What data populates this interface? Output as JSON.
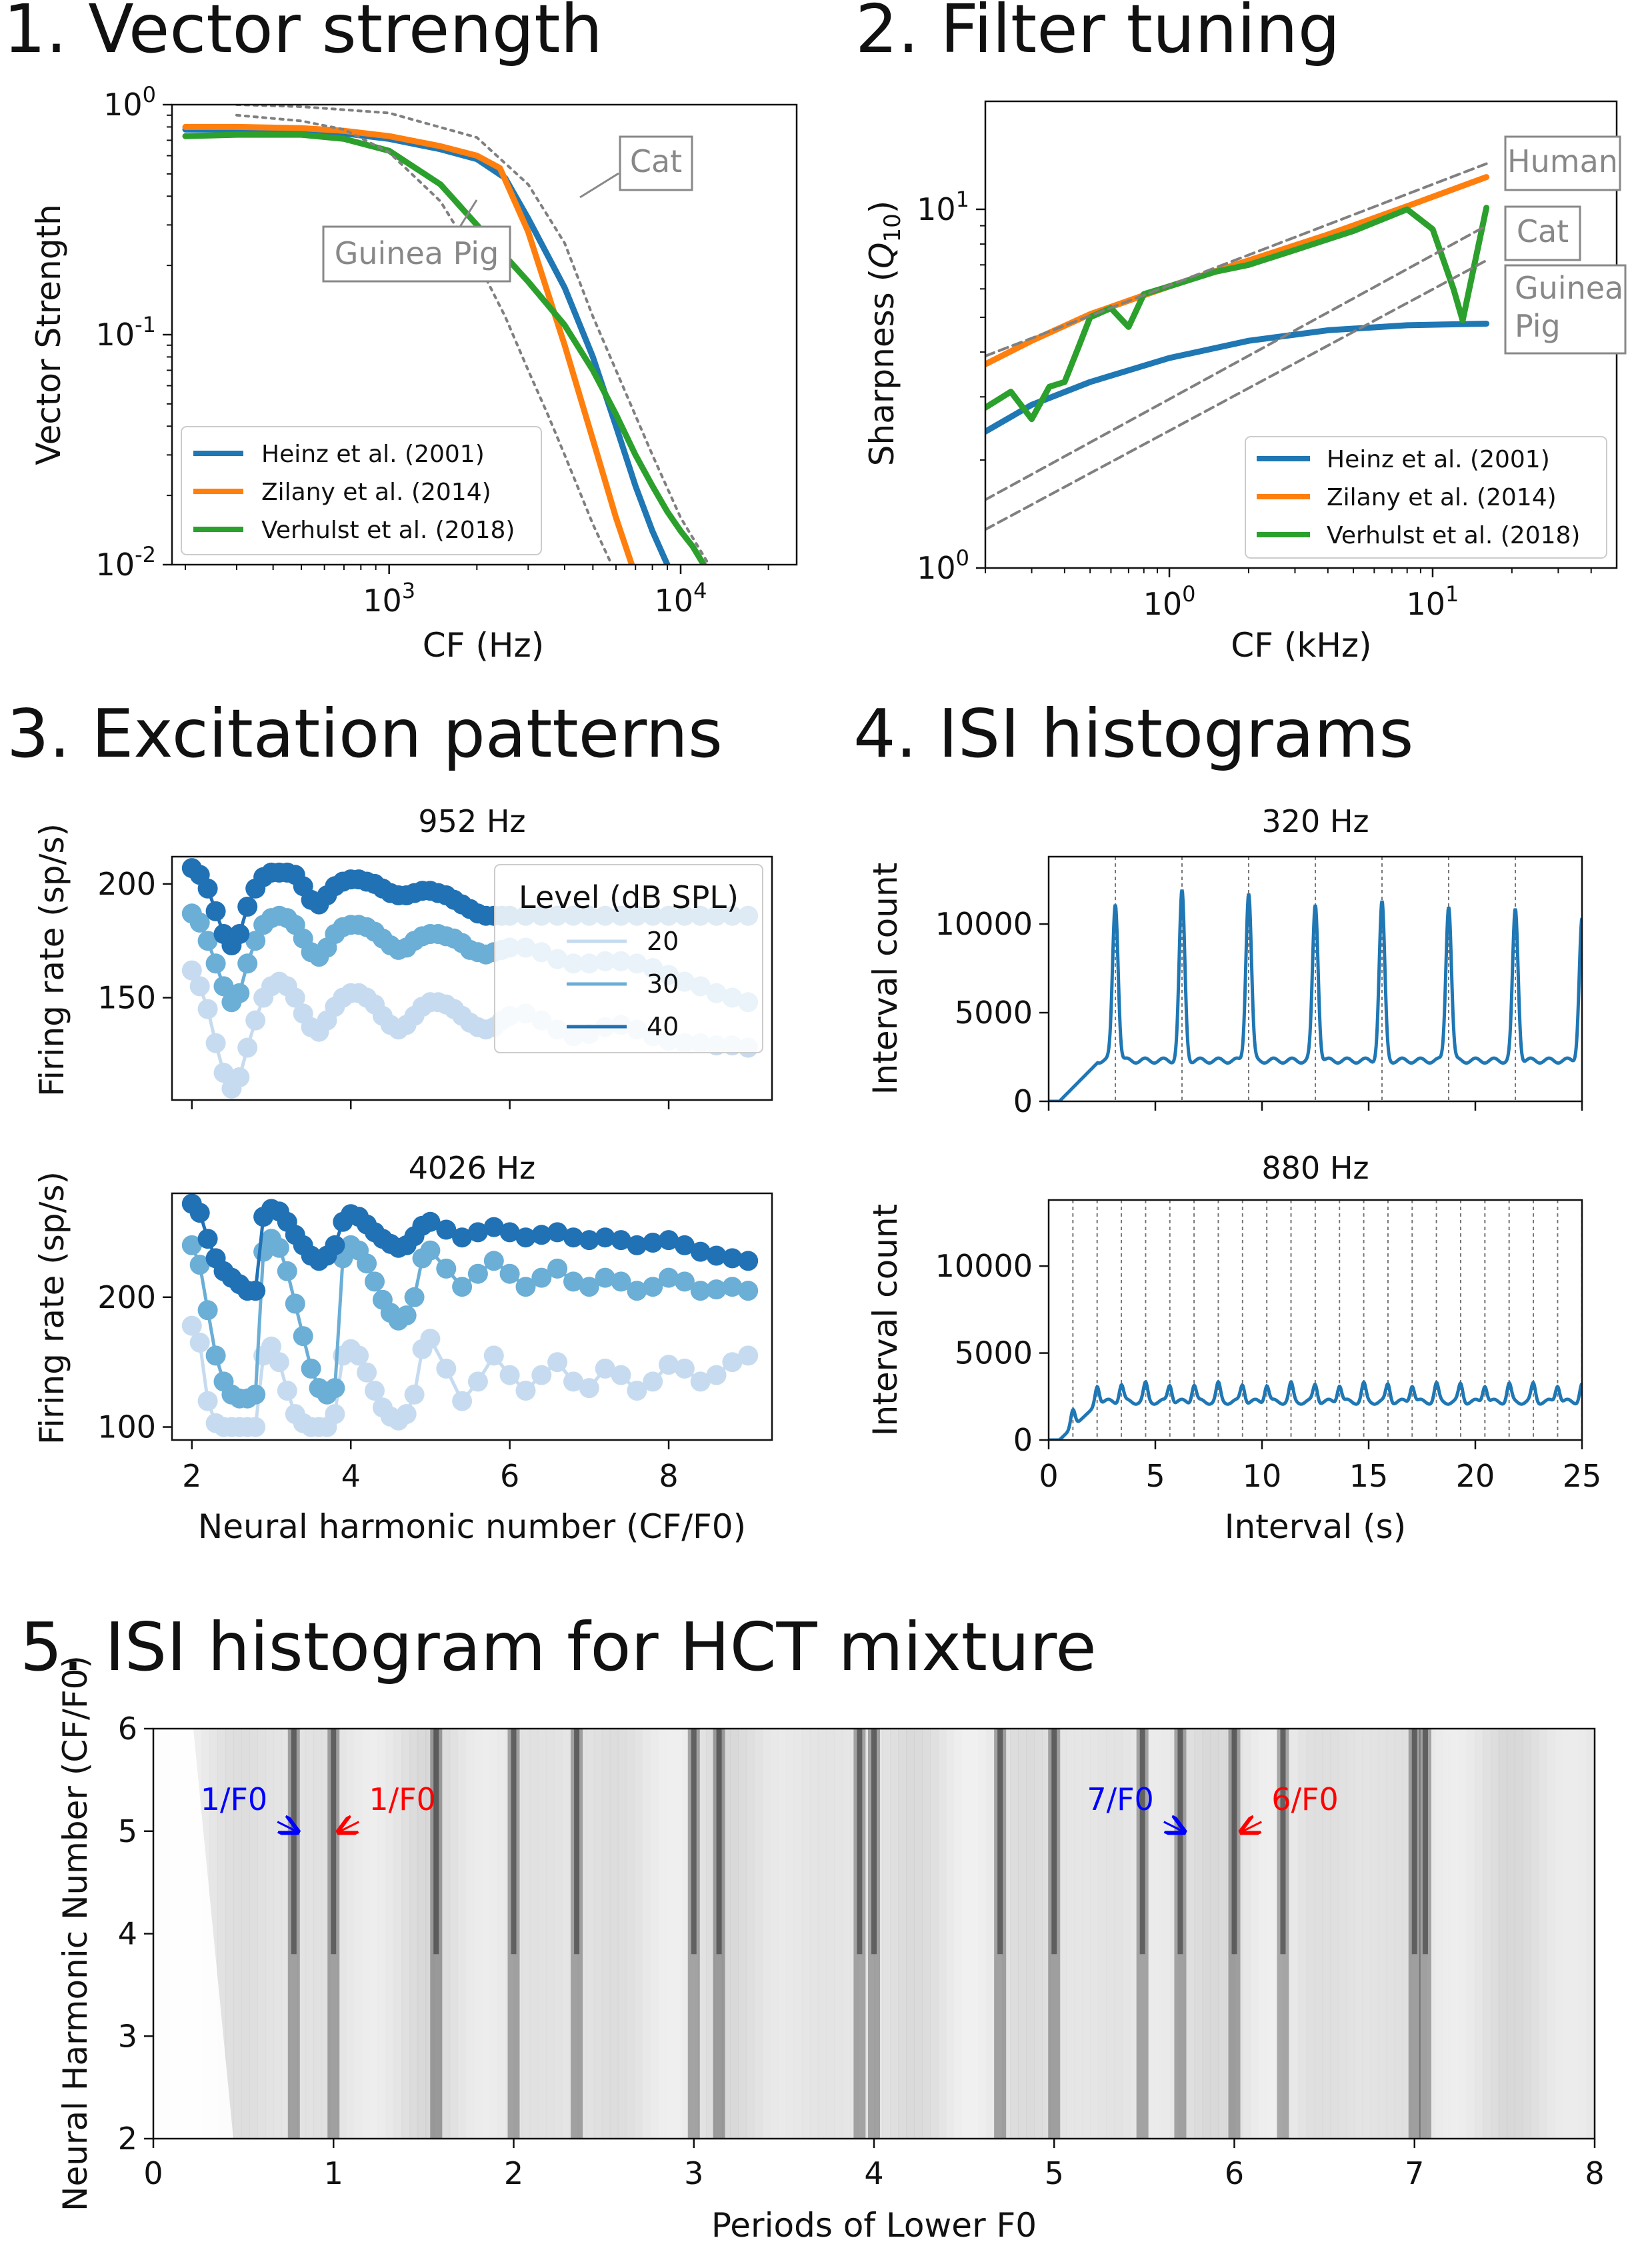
{
  "panels": {
    "p1": {
      "title": "1. Vector strength",
      "xlabel": "CF (Hz)",
      "ylabel": "Vector Strength",
      "xticks": [
        "10^3",
        "10^4"
      ],
      "yticks": [
        "10^0",
        "10^-1",
        "10^-2"
      ],
      "notes": [
        "Cat",
        "Guinea Pig"
      ]
    },
    "p2": {
      "title": "2. Filter tuning",
      "xlabel": "CF (kHz)",
      "ylabel_main": "Sharpness (",
      "ylabel_sym": "Q",
      "ylabel_sub": "10",
      "ylabel_end": ")",
      "xticks": [
        "10^0",
        "10^1"
      ],
      "yticks": [
        "10^1",
        "10^0"
      ],
      "notes": [
        "Human",
        "Cat",
        "Guinea",
        "Pig"
      ]
    },
    "p3": {
      "title": "3. Excitation patterns",
      "sub1": "952 Hz",
      "sub2": "4026 Hz",
      "ylabel": "Firing rate (sp/s)",
      "xlabel": "Neural harmonic number (CF/F0)",
      "legend_title": "Level (dB SPL)",
      "yticks_top": [
        "200",
        "150"
      ],
      "yticks_bot": [
        "200",
        "100"
      ],
      "xticks": [
        "2",
        "4",
        "6",
        "8"
      ]
    },
    "p4": {
      "title": "4. ISI histograms",
      "sub1": "320 Hz",
      "sub2": "880 Hz",
      "ylabel": "Interval count",
      "xlabel": "Interval (s)",
      "yticks": [
        "10000",
        "5000",
        "0"
      ],
      "xticks": [
        "0",
        "5",
        "10",
        "15",
        "20",
        "25"
      ]
    },
    "p5": {
      "title": "5. ISI histogram for HCT mixture",
      "ylabel": "Neural Harmonic Number (CF/F0)",
      "xlabel": "Periods of Lower F0",
      "xticks": [
        "0",
        "1",
        "2",
        "3",
        "4",
        "5",
        "6",
        "7",
        "8"
      ],
      "yticks": [
        "6",
        "5",
        "4",
        "3",
        "2"
      ],
      "annotations": [
        "1/F0",
        "1/F0",
        "7/F0",
        "6/F0"
      ]
    }
  },
  "legend_models": [
    "Heinz et al. (2001)",
    "Zilany et al. (2014)",
    "Verhulst et al. (2018)"
  ],
  "colors": {
    "blue": "#1f77b4",
    "orange": "#ff7f0e",
    "green": "#2ca02c",
    "ref": "#808080",
    "red": "#ff0000",
    "ann_blue": "#0000ff"
  },
  "chart_data": [
    {
      "type": "line",
      "title": "1. Vector strength",
      "xlabel": "CF (Hz)",
      "ylabel": "Vector Strength",
      "xscale": "log",
      "yscale": "log",
      "xlim": [
        180,
        25000
      ],
      "ylim": [
        0.01,
        1
      ],
      "series": [
        {
          "name": "Heinz et al. (2001)",
          "color": "#1f77b4",
          "x": [
            200,
            300,
            500,
            700,
            1000,
            1500,
            2000,
            2500,
            3000,
            4000,
            5000,
            6000,
            7000,
            8000,
            9000
          ],
          "y": [
            0.78,
            0.78,
            0.77,
            0.75,
            0.71,
            0.64,
            0.58,
            0.48,
            0.32,
            0.16,
            0.08,
            0.04,
            0.022,
            0.014,
            0.01
          ]
        },
        {
          "name": "Zilany et al. (2014)",
          "color": "#ff7f0e",
          "x": [
            200,
            300,
            500,
            700,
            1000,
            1500,
            2000,
            2400,
            3000,
            4000,
            5000,
            6000,
            6800
          ],
          "y": [
            0.8,
            0.8,
            0.79,
            0.77,
            0.73,
            0.66,
            0.6,
            0.53,
            0.28,
            0.09,
            0.035,
            0.016,
            0.01
          ]
        },
        {
          "name": "Verhulst et al. (2018)",
          "color": "#2ca02c",
          "x": [
            200,
            300,
            500,
            700,
            1000,
            1500,
            2000,
            3000,
            4000,
            5000,
            6000,
            7000,
            8000,
            9000,
            10000,
            11000,
            12000
          ],
          "y": [
            0.73,
            0.74,
            0.74,
            0.71,
            0.63,
            0.45,
            0.3,
            0.17,
            0.11,
            0.07,
            0.045,
            0.03,
            0.022,
            0.017,
            0.014,
            0.012,
            0.01
          ]
        },
        {
          "name": "Cat",
          "color": "#808080",
          "dashed": true,
          "x": [
            300,
            500,
            1000,
            2000,
            3000,
            4000,
            5000,
            6000,
            8000,
            10000,
            12500
          ],
          "y": [
            1.0,
            0.98,
            0.92,
            0.72,
            0.45,
            0.25,
            0.12,
            0.07,
            0.03,
            0.016,
            0.01
          ]
        },
        {
          "name": "Guinea Pig",
          "color": "#808080",
          "dashed": true,
          "x": [
            300,
            500,
            700,
            1000,
            1500,
            2000,
            2500,
            3000,
            3500,
            4000,
            5000,
            5800
          ],
          "y": [
            0.9,
            0.85,
            0.78,
            0.62,
            0.38,
            0.21,
            0.12,
            0.07,
            0.045,
            0.03,
            0.015,
            0.01
          ]
        }
      ]
    },
    {
      "type": "line",
      "title": "2. Filter tuning",
      "xlabel": "CF (kHz)",
      "ylabel": "Sharpness (Q10)",
      "xscale": "log",
      "yscale": "log",
      "xlim": [
        0.2,
        50
      ],
      "ylim": [
        1,
        20
      ],
      "series": [
        {
          "name": "Heinz et al. (2001)",
          "color": "#1f77b4",
          "x": [
            0.2,
            0.3,
            0.5,
            1,
            2,
            4,
            8,
            16
          ],
          "y": [
            2.4,
            2.85,
            3.3,
            3.85,
            4.3,
            4.6,
            4.75,
            4.8
          ]
        },
        {
          "name": "Zilany et al. (2014)",
          "color": "#ff7f0e",
          "x": [
            0.2,
            0.3,
            0.5,
            1,
            2,
            4,
            8,
            16
          ],
          "y": [
            3.7,
            4.3,
            5.1,
            6.1,
            7.2,
            8.5,
            10.2,
            12.3
          ]
        },
        {
          "name": "Verhulst et al. (2018)",
          "color": "#2ca02c",
          "x": [
            0.2,
            0.25,
            0.3,
            0.35,
            0.4,
            0.45,
            0.5,
            0.6,
            0.7,
            0.8,
            1.0,
            1.5,
            2,
            3,
            5,
            8,
            10,
            12,
            13,
            16
          ],
          "y": [
            2.8,
            3.1,
            2.6,
            3.2,
            3.3,
            4.1,
            5.0,
            5.3,
            4.7,
            5.8,
            6.1,
            6.7,
            7.0,
            7.7,
            8.7,
            10.0,
            8.8,
            6.0,
            4.9,
            10.1
          ]
        },
        {
          "name": "Human",
          "color": "#808080",
          "dashed": true,
          "x": [
            0.2,
            16
          ],
          "y": [
            3.9,
            13.4
          ]
        },
        {
          "name": "Cat",
          "color": "#808080",
          "dashed": true,
          "x": [
            0.2,
            16
          ],
          "y": [
            1.55,
            9.0
          ]
        },
        {
          "name": "Guinea Pig",
          "color": "#808080",
          "dashed": true,
          "x": [
            0.2,
            16
          ],
          "y": [
            1.28,
            7.2
          ]
        }
      ]
    },
    {
      "type": "line",
      "title": "952 Hz",
      "xlim": [
        1.75,
        9.3
      ],
      "ylim": [
        105,
        212
      ],
      "legend_title": "Level (dB SPL)",
      "x": [
        2.0,
        2.1,
        2.2,
        2.3,
        2.4,
        2.5,
        2.6,
        2.7,
        2.8,
        2.9,
        3.0,
        3.1,
        3.2,
        3.3,
        3.4,
        3.5,
        3.6,
        3.7,
        3.8,
        3.9,
        4.0,
        4.1,
        4.2,
        4.3,
        4.4,
        4.5,
        4.6,
        4.7,
        4.8,
        4.9,
        5.0,
        5.1,
        5.2,
        5.3,
        5.4,
        5.5,
        5.6,
        5.7,
        5.8,
        5.9,
        6.0,
        6.2,
        6.4,
        6.6,
        6.8,
        7.0,
        7.2,
        7.4,
        7.6,
        7.8,
        8.0,
        8.2,
        8.4,
        8.6,
        8.8,
        9.0
      ],
      "series": [
        {
          "name": "20",
          "color": "#c6dbef",
          "values": [
            162,
            155,
            145,
            130,
            117,
            110,
            115,
            128,
            140,
            150,
            155,
            157,
            155,
            150,
            143,
            137,
            135,
            140,
            146,
            150,
            152,
            152,
            150,
            147,
            142,
            138,
            136,
            138,
            142,
            146,
            148,
            148,
            147,
            145,
            142,
            139,
            137,
            136,
            137,
            140,
            142,
            143,
            140,
            136,
            133,
            134,
            137,
            138,
            136,
            133,
            131,
            130,
            130,
            129,
            129,
            128
          ]
        },
        {
          "name": "30",
          "color": "#6baed6",
          "values": [
            187,
            183,
            175,
            165,
            155,
            148,
            152,
            165,
            175,
            182,
            185,
            186,
            185,
            182,
            176,
            170,
            168,
            172,
            178,
            181,
            182,
            182,
            181,
            179,
            176,
            173,
            171,
            172,
            175,
            177,
            178,
            178,
            177,
            176,
            174,
            171,
            170,
            169,
            170,
            171,
            172,
            172,
            170,
            167,
            165,
            165,
            166,
            166,
            165,
            163,
            160,
            157,
            155,
            152,
            150,
            148
          ]
        },
        {
          "name": "40",
          "color": "#2171b5",
          "values": [
            207,
            204,
            198,
            188,
            178,
            173,
            178,
            190,
            198,
            203,
            205,
            205,
            205,
            204,
            199,
            193,
            191,
            195,
            199,
            201,
            202,
            202,
            201,
            200,
            198,
            196,
            195,
            195,
            196,
            197,
            197,
            196,
            195,
            193,
            191,
            189,
            187,
            186,
            186,
            186,
            186,
            186,
            186,
            186,
            186,
            186,
            186,
            186,
            186,
            186,
            186,
            186,
            186,
            186,
            186,
            186
          ]
        }
      ]
    },
    {
      "type": "line",
      "title": "4026 Hz",
      "xlim": [
        1.75,
        9.3
      ],
      "ylim": [
        90,
        280
      ],
      "x": [
        2.0,
        2.1,
        2.2,
        2.3,
        2.4,
        2.5,
        2.6,
        2.7,
        2.8,
        2.9,
        3.0,
        3.1,
        3.2,
        3.3,
        3.4,
        3.5,
        3.6,
        3.7,
        3.8,
        3.9,
        4.0,
        4.1,
        4.2,
        4.3,
        4.4,
        4.5,
        4.6,
        4.7,
        4.8,
        4.9,
        5.0,
        5.2,
        5.4,
        5.6,
        5.8,
        6.0,
        6.2,
        6.4,
        6.6,
        6.8,
        7.0,
        7.2,
        7.4,
        7.6,
        7.8,
        8.0,
        8.2,
        8.4,
        8.6,
        8.8,
        9.0
      ],
      "series": [
        {
          "name": "20",
          "color": "#c6dbef",
          "values": [
            178,
            165,
            120,
            103,
            100,
            100,
            100,
            100,
            100,
            155,
            162,
            150,
            128,
            110,
            103,
            100,
            100,
            100,
            110,
            155,
            160,
            155,
            142,
            128,
            115,
            108,
            105,
            110,
            125,
            160,
            168,
            145,
            120,
            135,
            155,
            140,
            128,
            140,
            150,
            135,
            130,
            145,
            140,
            128,
            135,
            148,
            145,
            135,
            140,
            150,
            155
          ]
        },
        {
          "name": "30",
          "color": "#6baed6",
          "values": [
            240,
            225,
            190,
            155,
            135,
            125,
            122,
            122,
            125,
            235,
            245,
            238,
            220,
            195,
            170,
            145,
            130,
            125,
            130,
            230,
            240,
            236,
            226,
            212,
            198,
            188,
            182,
            186,
            200,
            230,
            236,
            222,
            208,
            218,
            228,
            218,
            208,
            215,
            222,
            212,
            208,
            215,
            212,
            205,
            208,
            215,
            212,
            205,
            206,
            208,
            205
          ]
        },
        {
          "name": "40",
          "color": "#2171b5",
          "values": [
            272,
            265,
            245,
            230,
            220,
            215,
            210,
            205,
            205,
            262,
            268,
            266,
            258,
            248,
            240,
            232,
            228,
            232,
            240,
            258,
            264,
            262,
            256,
            250,
            245,
            241,
            238,
            240,
            247,
            255,
            258,
            252,
            246,
            250,
            254,
            250,
            246,
            248,
            250,
            246,
            244,
            246,
            244,
            240,
            242,
            244,
            240,
            235,
            232,
            230,
            228
          ]
        }
      ]
    },
    {
      "type": "line",
      "title": "320 Hz",
      "xlabel": "",
      "ylabel": "Interval count",
      "xlim": [
        0,
        25
      ],
      "ylim": [
        0,
        13800
      ],
      "period": 3.125,
      "baseline": 2300,
      "peak_values": [
        11200,
        11800,
        11800,
        11100,
        11200,
        11100,
        10800,
        10300
      ],
      "series": [
        {
          "name": "",
          "color": "#1f77b4"
        }
      ]
    },
    {
      "type": "line",
      "title": "880 Hz",
      "xlabel": "Interval (s)",
      "ylabel": "Interval count",
      "xlim": [
        0,
        25
      ],
      "ylim": [
        0,
        13800
      ],
      "period": 1.136,
      "baseline": 2200,
      "peak_value": 3200,
      "series": [
        {
          "name": "",
          "color": "#1f77b4"
        }
      ]
    },
    {
      "type": "heatmap",
      "title": "5. ISI histogram for HCT mixture",
      "xlabel": "Periods of Lower F0",
      "ylabel": "Neural Harmonic Number (CF/F0)",
      "xlim": [
        0,
        8
      ],
      "ylim": [
        2,
        6
      ],
      "stripes_x": [
        0.78,
        1.0,
        1.57,
        2.0,
        2.35,
        3.0,
        3.14,
        3.92,
        4.0,
        4.7,
        5.0,
        5.49,
        5.7,
        6.0,
        6.27,
        7.0,
        7.06
      ],
      "annotations": [
        {
          "text": "1/F0",
          "color": "#0000ff",
          "x": 0.8,
          "y": 5.0
        },
        {
          "text": "1/F0",
          "color": "#ff0000",
          "x": 1.03,
          "y": 5.0
        },
        {
          "text": "7/F0",
          "color": "#0000ff",
          "x": 5.72,
          "y": 5.0
        },
        {
          "text": "6/F0",
          "color": "#ff0000",
          "x": 6.04,
          "y": 5.0
        }
      ]
    }
  ]
}
